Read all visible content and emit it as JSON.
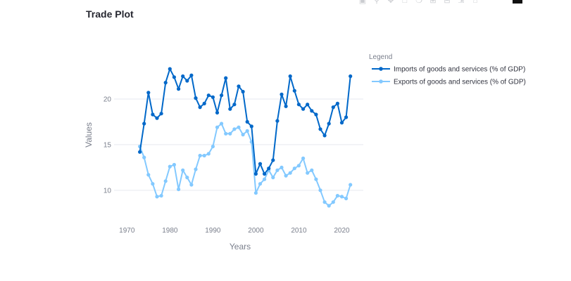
{
  "page": {
    "title": "Trade Plot"
  },
  "toolbar": {
    "icons": [
      "camera-icon",
      "zoom-icon",
      "pan-icon",
      "box-select-icon",
      "lasso-select-icon",
      "zoom-in-icon",
      "zoom-out-icon",
      "autoscale-icon",
      "reset-axes-icon",
      "plotly-logo-icon"
    ]
  },
  "chart_data": {
    "type": "line",
    "title": "",
    "xlabel": "Years",
    "ylabel": "Values",
    "xlim": [
      1967,
      2025
    ],
    "ylim": [
      6.6,
      26
    ],
    "xticks": [
      1970,
      1980,
      1990,
      2000,
      2010,
      2020
    ],
    "yticks": [
      10,
      15,
      20
    ],
    "grid": true,
    "legend": {
      "title": "Legend",
      "placement": "top-right"
    },
    "x": [
      1973,
      1974,
      1975,
      1976,
      1977,
      1978,
      1979,
      1980,
      1981,
      1982,
      1983,
      1984,
      1985,
      1986,
      1987,
      1988,
      1989,
      1990,
      1991,
      1992,
      1993,
      1994,
      1995,
      1996,
      1997,
      1998,
      1999,
      2000,
      2001,
      2002,
      2003,
      2004,
      2005,
      2006,
      2007,
      2008,
      2009,
      2010,
      2011,
      2012,
      2013,
      2014,
      2015,
      2016,
      2017,
      2018,
      2019,
      2020,
      2021,
      2022
    ],
    "series": [
      {
        "name": "Imports of goods and services (% of GDP)",
        "color": "#0068c9",
        "values": [
          14.2,
          17.3,
          20.7,
          18.3,
          17.9,
          18.4,
          21.8,
          23.3,
          22.4,
          21.1,
          22.5,
          22.0,
          22.6,
          20.1,
          19.1,
          19.5,
          20.4,
          20.2,
          18.5,
          20.4,
          22.3,
          18.9,
          19.4,
          21.4,
          20.8,
          17.5,
          17.0,
          11.8,
          12.9,
          11.8,
          12.4,
          13.3,
          17.6,
          20.5,
          19.2,
          22.5,
          20.9,
          19.4,
          18.9,
          19.4,
          18.7,
          18.3,
          16.7,
          16.0,
          17.3,
          19.1,
          19.5,
          17.4,
          18.0,
          22.5
        ]
      },
      {
        "name": "Exports of goods and services (% of GDP)",
        "color": "#83c9ff",
        "values": [
          14.8,
          13.6,
          11.7,
          10.7,
          9.3,
          9.4,
          11.0,
          12.6,
          12.8,
          10.1,
          12.2,
          11.4,
          10.6,
          12.3,
          13.8,
          13.8,
          14.0,
          14.8,
          16.9,
          17.3,
          16.2,
          16.2,
          16.7,
          16.9,
          16.1,
          16.5,
          15.3,
          9.7,
          10.7,
          11.2,
          12.2,
          11.4,
          12.2,
          12.5,
          11.6,
          11.9,
          12.4,
          12.7,
          13.5,
          11.9,
          12.2,
          11.2,
          10.0,
          8.7,
          8.3,
          8.7,
          9.4,
          9.3,
          9.1,
          10.6
        ]
      }
    ]
  }
}
